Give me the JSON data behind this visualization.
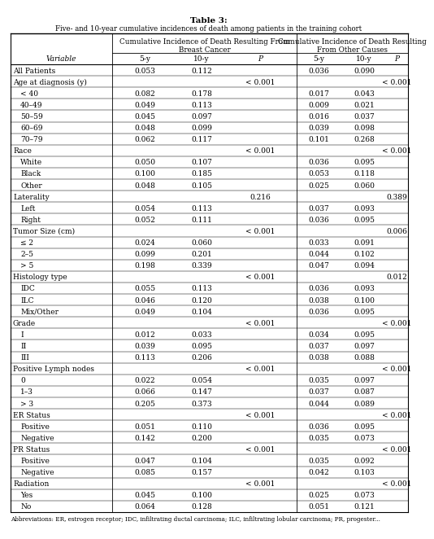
{
  "title_line1": "Table 3:",
  "title_line2": "Five- and 10-year cumulative incidences of death among patients in the training cohort",
  "group_header1_line1": "Cumulative Incidence of Death Resulting From",
  "group_header1_line2": "Breast Cancer",
  "group_header2_line1": "Cumulative Incidence of Death Resulting",
  "group_header2_line2": "From Other Causes",
  "subheaders": [
    "5-y",
    "10-y",
    "P",
    "5-y",
    "10-y",
    "P"
  ],
  "footnote": "Abbreviations: ER, estrogen receptor; IDC, infiltrating ductal carcinoma; ILC, infiltrating lobular carcinoma; PR, progester...",
  "rows": [
    {
      "label": "All Patients",
      "indent": false,
      "bc5": "0.053",
      "bc10": "0.112",
      "bcp": "",
      "oc5": "0.036",
      "oc10": "0.090",
      "ocp": ""
    },
    {
      "label": "Age at diagnosis (y)",
      "indent": false,
      "bc5": "",
      "bc10": "",
      "bcp": "< 0.001",
      "oc5": "",
      "oc10": "",
      "ocp": "< 0.001"
    },
    {
      "label": "< 40",
      "indent": true,
      "bc5": "0.082",
      "bc10": "0.178",
      "bcp": "",
      "oc5": "0.017",
      "oc10": "0.043",
      "ocp": ""
    },
    {
      "label": "40–49",
      "indent": true,
      "bc5": "0.049",
      "bc10": "0.113",
      "bcp": "",
      "oc5": "0.009",
      "oc10": "0.021",
      "ocp": ""
    },
    {
      "label": "50–59",
      "indent": true,
      "bc5": "0.045",
      "bc10": "0.097",
      "bcp": "",
      "oc5": "0.016",
      "oc10": "0.037",
      "ocp": ""
    },
    {
      "label": "60–69",
      "indent": true,
      "bc5": "0.048",
      "bc10": "0.099",
      "bcp": "",
      "oc5": "0.039",
      "oc10": "0.098",
      "ocp": ""
    },
    {
      "label": "70–79",
      "indent": true,
      "bc5": "0.062",
      "bc10": "0.117",
      "bcp": "",
      "oc5": "0.101",
      "oc10": "0.268",
      "ocp": ""
    },
    {
      "label": "Race",
      "indent": false,
      "bc5": "",
      "bc10": "",
      "bcp": "< 0.001",
      "oc5": "",
      "oc10": "",
      "ocp": "< 0.001"
    },
    {
      "label": "White",
      "indent": true,
      "bc5": "0.050",
      "bc10": "0.107",
      "bcp": "",
      "oc5": "0.036",
      "oc10": "0.095",
      "ocp": ""
    },
    {
      "label": "Black",
      "indent": true,
      "bc5": "0.100",
      "bc10": "0.185",
      "bcp": "",
      "oc5": "0.053",
      "oc10": "0.118",
      "ocp": ""
    },
    {
      "label": "Other",
      "indent": true,
      "bc5": "0.048",
      "bc10": "0.105",
      "bcp": "",
      "oc5": "0.025",
      "oc10": "0.060",
      "ocp": ""
    },
    {
      "label": "Laterality",
      "indent": false,
      "bc5": "",
      "bc10": "",
      "bcp": "0.216",
      "oc5": "",
      "oc10": "",
      "ocp": "0.389"
    },
    {
      "label": "Left",
      "indent": true,
      "bc5": "0.054",
      "bc10": "0.113",
      "bcp": "",
      "oc5": "0.037",
      "oc10": "0.093",
      "ocp": ""
    },
    {
      "label": "Right",
      "indent": true,
      "bc5": "0.052",
      "bc10": "0.111",
      "bcp": "",
      "oc5": "0.036",
      "oc10": "0.095",
      "ocp": ""
    },
    {
      "label": "Tumor Size (cm)",
      "indent": false,
      "bc5": "",
      "bc10": "",
      "bcp": "< 0.001",
      "oc5": "",
      "oc10": "",
      "ocp": "0.006"
    },
    {
      "label": "≤ 2",
      "indent": true,
      "bc5": "0.024",
      "bc10": "0.060",
      "bcp": "",
      "oc5": "0.033",
      "oc10": "0.091",
      "ocp": ""
    },
    {
      "label": "2–5",
      "indent": true,
      "bc5": "0.099",
      "bc10": "0.201",
      "bcp": "",
      "oc5": "0.044",
      "oc10": "0.102",
      "ocp": ""
    },
    {
      "label": "> 5",
      "indent": true,
      "bc5": "0.198",
      "bc10": "0.339",
      "bcp": "",
      "oc5": "0.047",
      "oc10": "0.094",
      "ocp": ""
    },
    {
      "label": "Histology type",
      "indent": false,
      "bc5": "",
      "bc10": "",
      "bcp": "< 0.001",
      "oc5": "",
      "oc10": "",
      "ocp": "0.012"
    },
    {
      "label": "IDC",
      "indent": true,
      "bc5": "0.055",
      "bc10": "0.113",
      "bcp": "",
      "oc5": "0.036",
      "oc10": "0.093",
      "ocp": ""
    },
    {
      "label": "ILC",
      "indent": true,
      "bc5": "0.046",
      "bc10": "0.120",
      "bcp": "",
      "oc5": "0.038",
      "oc10": "0.100",
      "ocp": ""
    },
    {
      "label": "Mix/Other",
      "indent": true,
      "bc5": "0.049",
      "bc10": "0.104",
      "bcp": "",
      "oc5": "0.036",
      "oc10": "0.095",
      "ocp": ""
    },
    {
      "label": "Grade",
      "indent": false,
      "bc5": "",
      "bc10": "",
      "bcp": "< 0.001",
      "oc5": "",
      "oc10": "",
      "ocp": "< 0.001"
    },
    {
      "label": "I",
      "indent": true,
      "bc5": "0.012",
      "bc10": "0.033",
      "bcp": "",
      "oc5": "0.034",
      "oc10": "0.095",
      "ocp": ""
    },
    {
      "label": "II",
      "indent": true,
      "bc5": "0.039",
      "bc10": "0.095",
      "bcp": "",
      "oc5": "0.037",
      "oc10": "0.097",
      "ocp": ""
    },
    {
      "label": "III",
      "indent": true,
      "bc5": "0.113",
      "bc10": "0.206",
      "bcp": "",
      "oc5": "0.038",
      "oc10": "0.088",
      "ocp": ""
    },
    {
      "label": "Positive Lymph nodes",
      "indent": false,
      "bc5": "",
      "bc10": "",
      "bcp": "< 0.001",
      "oc5": "",
      "oc10": "",
      "ocp": "< 0.001"
    },
    {
      "label": "0",
      "indent": true,
      "bc5": "0.022",
      "bc10": "0.054",
      "bcp": "",
      "oc5": "0.035",
      "oc10": "0.097",
      "ocp": ""
    },
    {
      "label": "1–3",
      "indent": true,
      "bc5": "0.066",
      "bc10": "0.147",
      "bcp": "",
      "oc5": "0.037",
      "oc10": "0.087",
      "ocp": ""
    },
    {
      "label": "> 3",
      "indent": true,
      "bc5": "0.205",
      "bc10": "0.373",
      "bcp": "",
      "oc5": "0.044",
      "oc10": "0.089",
      "ocp": ""
    },
    {
      "label": "ER Status",
      "indent": false,
      "bc5": "",
      "bc10": "",
      "bcp": "< 0.001",
      "oc5": "",
      "oc10": "",
      "ocp": "< 0.001"
    },
    {
      "label": "Positive",
      "indent": true,
      "bc5": "0.051",
      "bc10": "0.110",
      "bcp": "",
      "oc5": "0.036",
      "oc10": "0.095",
      "ocp": ""
    },
    {
      "label": "Negative",
      "indent": true,
      "bc5": "0.142",
      "bc10": "0.200",
      "bcp": "",
      "oc5": "0.035",
      "oc10": "0.073",
      "ocp": ""
    },
    {
      "label": "PR Status",
      "indent": false,
      "bc5": "",
      "bc10": "",
      "bcp": "< 0.001",
      "oc5": "",
      "oc10": "",
      "ocp": "< 0.001"
    },
    {
      "label": "Positive",
      "indent": true,
      "bc5": "0.047",
      "bc10": "0.104",
      "bcp": "",
      "oc5": "0.035",
      "oc10": "0.092",
      "ocp": ""
    },
    {
      "label": "Negative",
      "indent": true,
      "bc5": "0.085",
      "bc10": "0.157",
      "bcp": "",
      "oc5": "0.042",
      "oc10": "0.103",
      "ocp": ""
    },
    {
      "label": "Radiation",
      "indent": false,
      "bc5": "",
      "bc10": "",
      "bcp": "< 0.001",
      "oc5": "",
      "oc10": "",
      "ocp": "< 0.001"
    },
    {
      "label": "Yes",
      "indent": true,
      "bc5": "0.045",
      "bc10": "0.100",
      "bcp": "",
      "oc5": "0.025",
      "oc10": "0.073",
      "ocp": ""
    },
    {
      "label": "No",
      "indent": true,
      "bc5": "0.064",
      "bc10": "0.128",
      "bcp": "",
      "oc5": "0.051",
      "oc10": "0.121",
      "ocp": ""
    }
  ]
}
